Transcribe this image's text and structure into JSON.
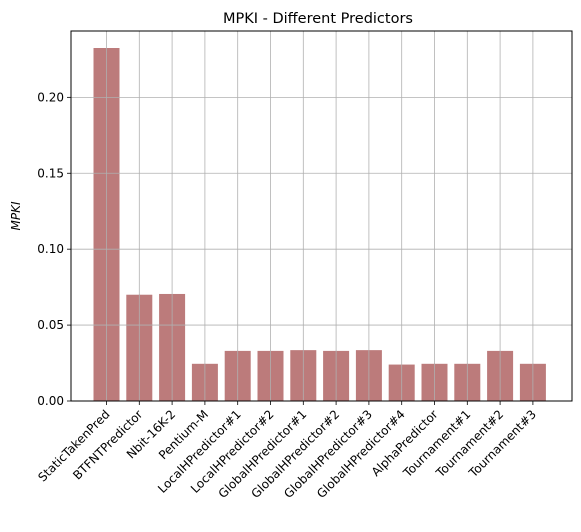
{
  "chart_data": {
    "type": "bar",
    "title": "MPKI - Different Predictors",
    "xlabel": "",
    "ylabel": "MPKI",
    "categories": [
      "StaticTakenPred",
      "BTFNTPredictor",
      "Nbit-16K-2",
      "Pentium-M",
      "LocalHPredictor#1",
      "LocalHPredictor#2",
      "GlobalHPredictor#1",
      "GlobalHPredictor#2",
      "GlobalHPredictor#3",
      "GlobalHPredictor#4",
      "AlphaPredictor",
      "Tournament#1",
      "Tournament#2",
      "Tournament#3"
    ],
    "values": [
      0.2325,
      0.07,
      0.0705,
      0.0245,
      0.033,
      0.033,
      0.0335,
      0.033,
      0.0335,
      0.024,
      0.0245,
      0.0245,
      0.033,
      0.0245
    ],
    "ylim": [
      0,
      0.2437
    ],
    "yticks": [
      0.0,
      0.05,
      0.1,
      0.15,
      0.2
    ],
    "ytick_labels": [
      "0.00",
      "0.05",
      "0.10",
      "0.15",
      "0.20"
    ],
    "grid": true,
    "bar_color": "#bc7b7b",
    "grid_color": "#b0b0b0"
  }
}
